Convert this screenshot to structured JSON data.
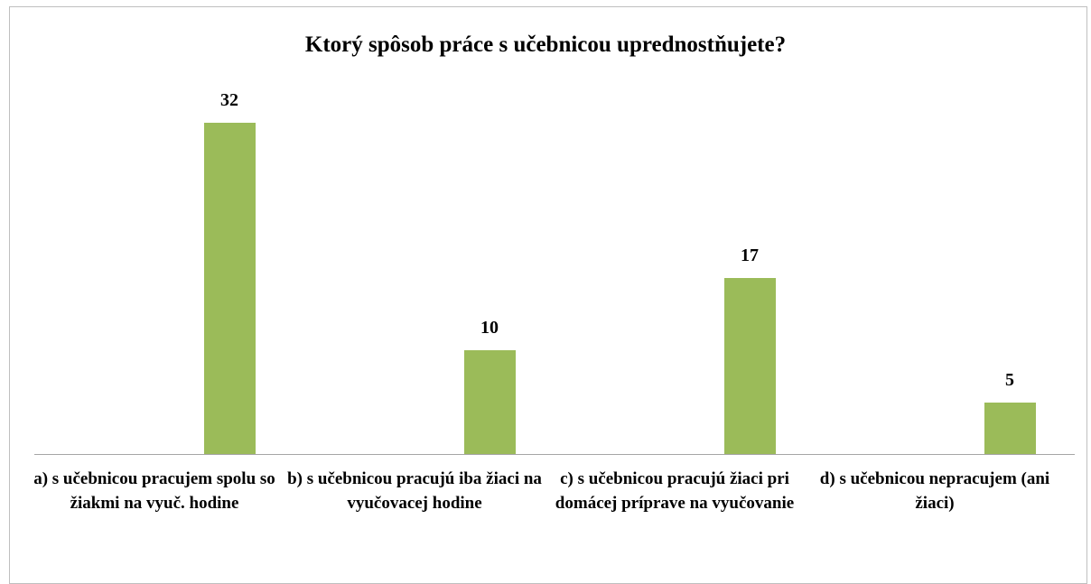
{
  "chart_data": {
    "type": "bar",
    "title": "Ktorý spôsob práce s učebnicou uprednostňujete?",
    "categories": [
      "a) s učebnicou pracujem spolu so žiakmi na vyuč. hodine",
      "b) s učebnicou pracujú iba žiaci na vyučovacej hodine",
      "c) s učebnicou pracujú žiaci pri domácej príprave na vyučovanie",
      "d) s učebnicou nepracujem (ani žiaci)"
    ],
    "values": [
      32,
      10,
      17,
      5
    ],
    "color": "#9bbb59"
  }
}
